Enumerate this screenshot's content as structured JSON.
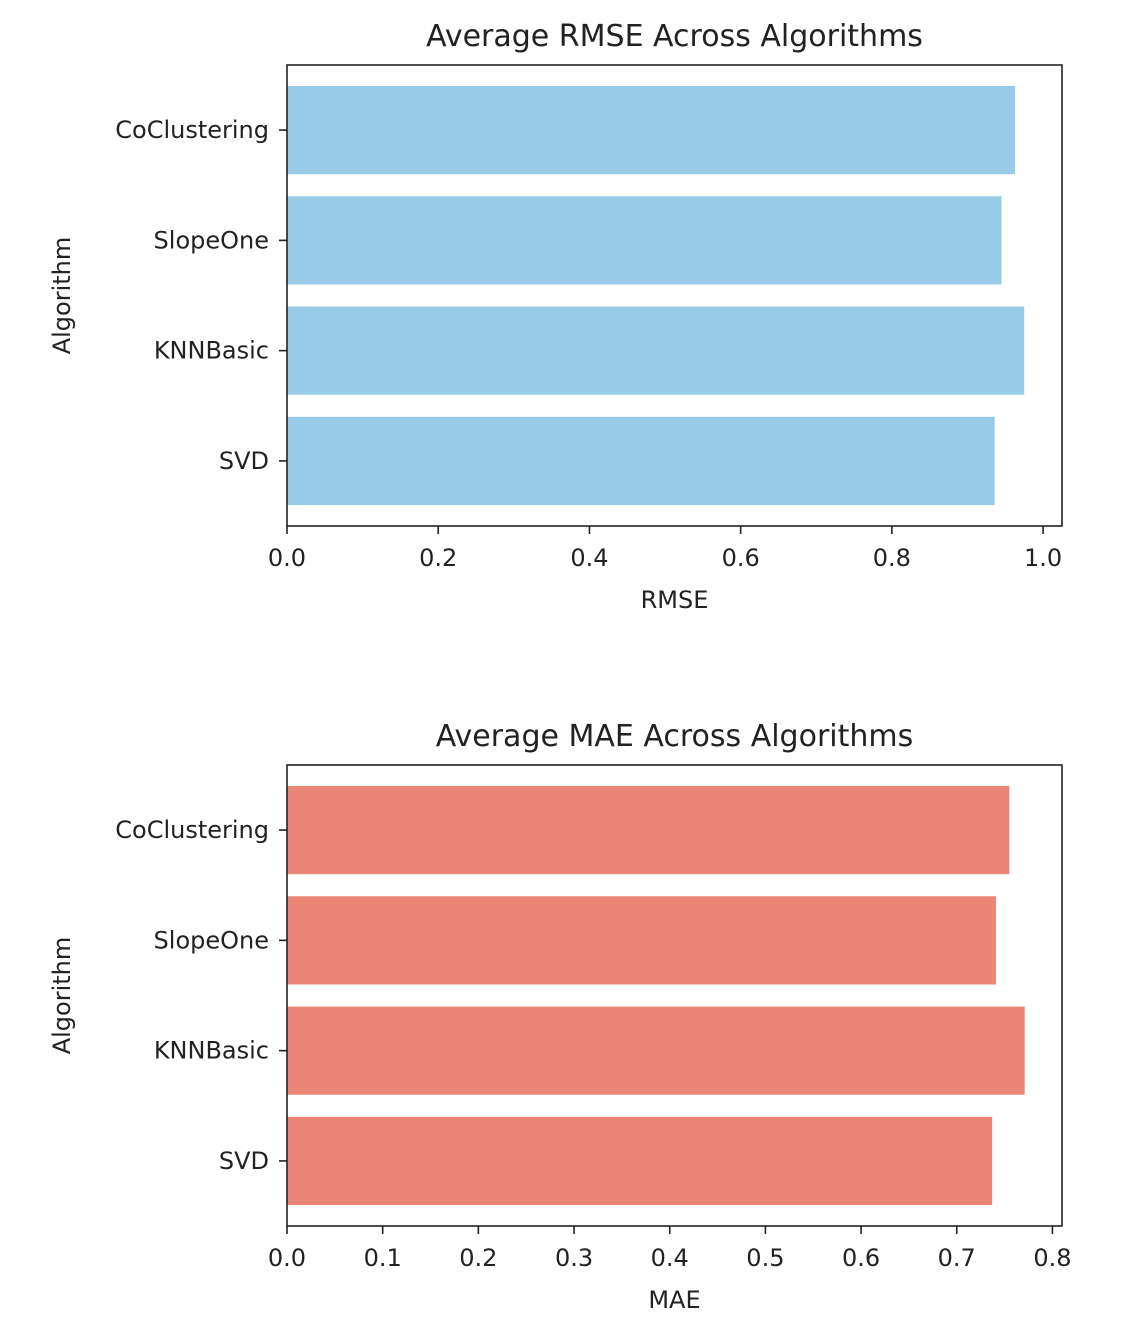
{
  "chart_data": [
    {
      "type": "bar",
      "orientation": "horizontal",
      "title": "Average RMSE Across Algorithms",
      "xlabel": "RMSE",
      "ylabel": "Algorithm",
      "categories": [
        "SVD",
        "KNNBasic",
        "SlopeOne",
        "CoClustering"
      ],
      "values": [
        0.936,
        0.975,
        0.945,
        0.963
      ],
      "xlim": [
        0.0,
        1.025
      ],
      "xticks": [
        0.0,
        0.2,
        0.4,
        0.6,
        0.8,
        1.0
      ],
      "xtick_labels": [
        "0.0",
        "0.2",
        "0.4",
        "0.6",
        "0.8",
        "1.0"
      ],
      "grid": false,
      "bar_color": "#97cbe7"
    },
    {
      "type": "bar",
      "orientation": "horizontal",
      "title": "Average MAE Across Algorithms",
      "xlabel": "MAE",
      "ylabel": "Algorithm",
      "categories": [
        "SVD",
        "KNNBasic",
        "SlopeOne",
        "CoClustering"
      ],
      "values": [
        0.737,
        0.771,
        0.741,
        0.755
      ],
      "xlim": [
        0.0,
        0.81
      ],
      "xticks": [
        0.0,
        0.1,
        0.2,
        0.3,
        0.4,
        0.5,
        0.6,
        0.7,
        0.8
      ],
      "xtick_labels": [
        "0.0",
        "0.1",
        "0.2",
        "0.3",
        "0.4",
        "0.5",
        "0.6",
        "0.7",
        "0.8"
      ],
      "grid": false,
      "bar_color": "#eb8677"
    }
  ]
}
